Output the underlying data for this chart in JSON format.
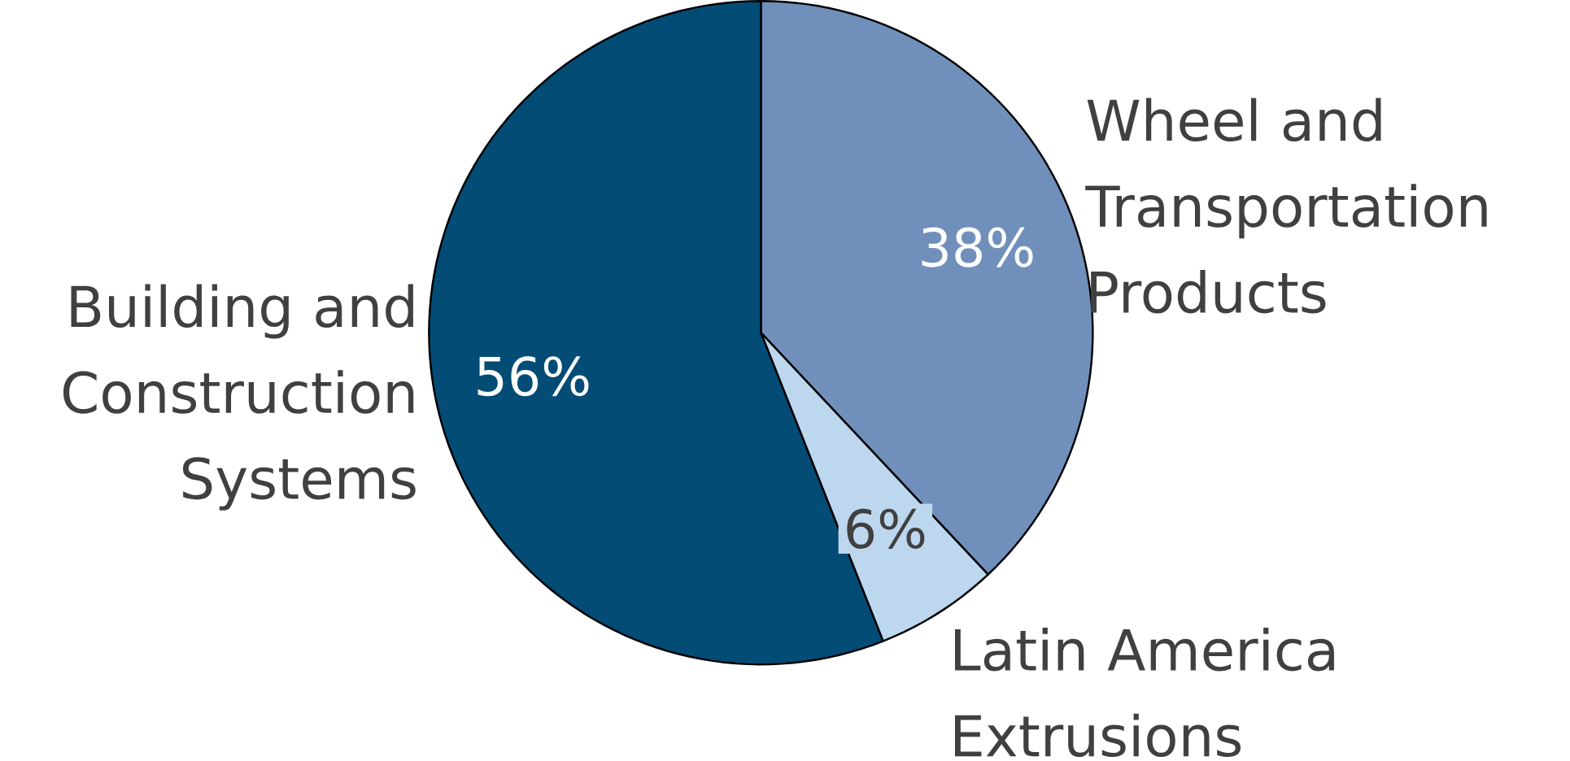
{
  "chart_data": {
    "type": "pie",
    "categories": [
      "Wheel and Transportation Products",
      "Latin America Extrusions",
      "Building and Construction Systems"
    ],
    "values": [
      38,
      6,
      56
    ],
    "value_labels": [
      "38%",
      "6%",
      "56%"
    ],
    "colors": [
      "#7090bb",
      "#bdd7ee",
      "#024c76"
    ]
  }
}
